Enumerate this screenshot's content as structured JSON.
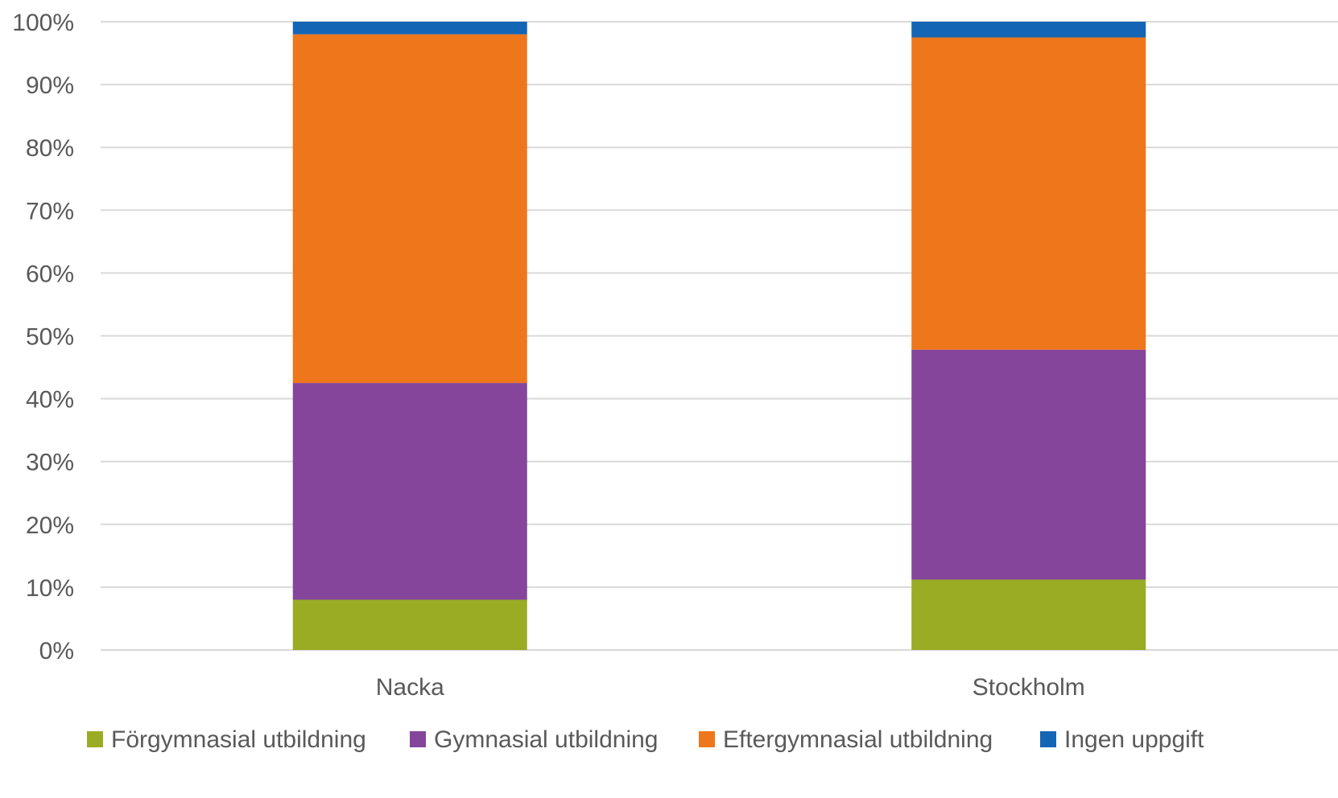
{
  "chart_data": {
    "type": "bar",
    "stacked": true,
    "percent_axis": true,
    "categories": [
      "Nacka",
      "Stockholm"
    ],
    "series": [
      {
        "name": "Förgymnasial utbildning",
        "color": "#9aab24",
        "values": [
          8.0,
          11.2
        ]
      },
      {
        "name": "Gymnasial utbildning",
        "color": "#84459b",
        "values": [
          34.5,
          36.6
        ]
      },
      {
        "name": "Eftergymnasial utbildning",
        "color": "#ee771c",
        "values": [
          55.5,
          49.7
        ]
      },
      {
        "name": "Ingen uppgift",
        "color": "#1565b5",
        "values": [
          2.0,
          2.5
        ]
      }
    ],
    "yticks": [
      "0%",
      "10%",
      "20%",
      "30%",
      "40%",
      "50%",
      "60%",
      "70%",
      "80%",
      "90%",
      "100%"
    ],
    "ylim": [
      0,
      100
    ],
    "grid": true,
    "legend_position": "bottom"
  }
}
